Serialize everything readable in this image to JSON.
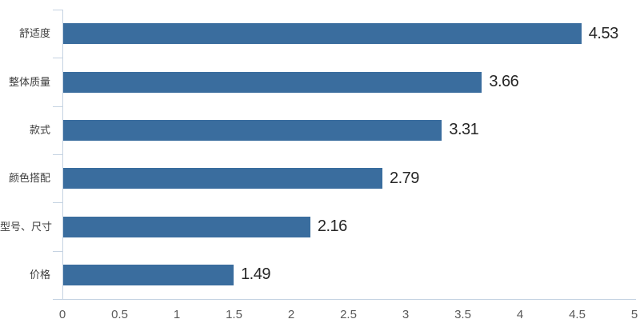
{
  "chart_data": {
    "type": "bar",
    "orientation": "horizontal",
    "title": "",
    "xlabel": "",
    "ylabel": "",
    "categories": [
      "舒适度",
      "整体质量",
      "款式",
      "颜色搭配",
      "型号、尺寸",
      "价格"
    ],
    "values": [
      4.53,
      3.66,
      3.31,
      2.79,
      2.16,
      1.49
    ],
    "value_labels": [
      "4.53",
      "3.66",
      "3.31",
      "2.79",
      "2.16",
      "1.49"
    ],
    "xlim": [
      0,
      5
    ],
    "x_ticks": [
      0,
      0.5,
      1,
      1.5,
      2,
      2.5,
      3,
      3.5,
      4,
      4.5,
      5
    ],
    "x_tick_labels": [
      "0",
      "0.5",
      "1",
      "1.5",
      "2",
      "2.5",
      "3",
      "3.5",
      "4",
      "4.5",
      "5"
    ],
    "grid": false,
    "legend": false,
    "colors": {
      "bar": "#3A6D9E",
      "axis": "#C5D3E2",
      "category_label": "#3d3d3d",
      "value_label": "#262626",
      "x_tick_label": "#595959",
      "background": "#ffffff"
    }
  }
}
